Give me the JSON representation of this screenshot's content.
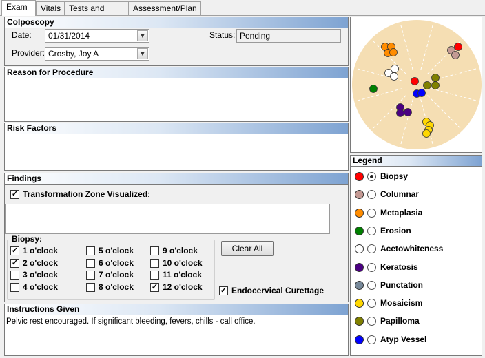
{
  "tabs": [
    {
      "label": "Exam",
      "active": true
    },
    {
      "label": "Vitals",
      "active": false
    },
    {
      "label": "Tests and Labs",
      "active": false
    },
    {
      "label": "Assessment/Plan",
      "active": false
    }
  ],
  "colposcopy": {
    "title": "Colposcopy",
    "date_label": "Date:",
    "date_value": "01/31/2014",
    "provider_label": "Provider:",
    "provider_value": "Crosby, Joy A",
    "status_label": "Status:",
    "status_value": "Pending"
  },
  "reason": {
    "title": "Reason for Procedure",
    "text": ""
  },
  "risk": {
    "title": "Risk Factors",
    "text": ""
  },
  "findings": {
    "title": "Findings",
    "tz_label": "Transformation Zone Visualized:",
    "tz_checked": true,
    "tz_text": "",
    "biopsy_group_label": "Biopsy:",
    "clear_all_label": "Clear All",
    "endo_label": "Endocervical Curettage",
    "endo_checked": true,
    "clocks": [
      {
        "label": "1 o'clock",
        "checked": true
      },
      {
        "label": "2 o'clock",
        "checked": true
      },
      {
        "label": "3 o'clock",
        "checked": false
      },
      {
        "label": "4 o'clock",
        "checked": false
      },
      {
        "label": "5 o'clock",
        "checked": false
      },
      {
        "label": "6 o'clock",
        "checked": false
      },
      {
        "label": "7 o'clock",
        "checked": false
      },
      {
        "label": "8 o'clock",
        "checked": false
      },
      {
        "label": "9 o'clock",
        "checked": false
      },
      {
        "label": "10 o'clock",
        "checked": false
      },
      {
        "label": "11 o'clock",
        "checked": false
      },
      {
        "label": "12 o'clock",
        "checked": true
      }
    ]
  },
  "instructions": {
    "title": "Instructions Given",
    "text": "Pelvic rest encouraged.  If significant bleeding, fevers, chills - call office."
  },
  "diagram": {
    "background_color": "#f5deb3",
    "ray_color": "#ffffff"
  },
  "legend": {
    "title": "Legend",
    "selected": "Biopsy",
    "items": [
      {
        "label": "Biopsy",
        "color": "#ff0000"
      },
      {
        "label": "Columnar",
        "color": "#c49a94"
      },
      {
        "label": "Metaplasia",
        "color": "#ff8c00"
      },
      {
        "label": "Erosion",
        "color": "#008000"
      },
      {
        "label": "Acetowhiteness",
        "color": "#ffffff"
      },
      {
        "label": "Keratosis",
        "color": "#4b0082"
      },
      {
        "label": "Punctation",
        "color": "#778899"
      },
      {
        "label": "Mosaicism",
        "color": "#ffd700"
      },
      {
        "label": "Papilloma",
        "color": "#808000"
      },
      {
        "label": "Atyp Vessel",
        "color": "#0000ff"
      }
    ]
  }
}
